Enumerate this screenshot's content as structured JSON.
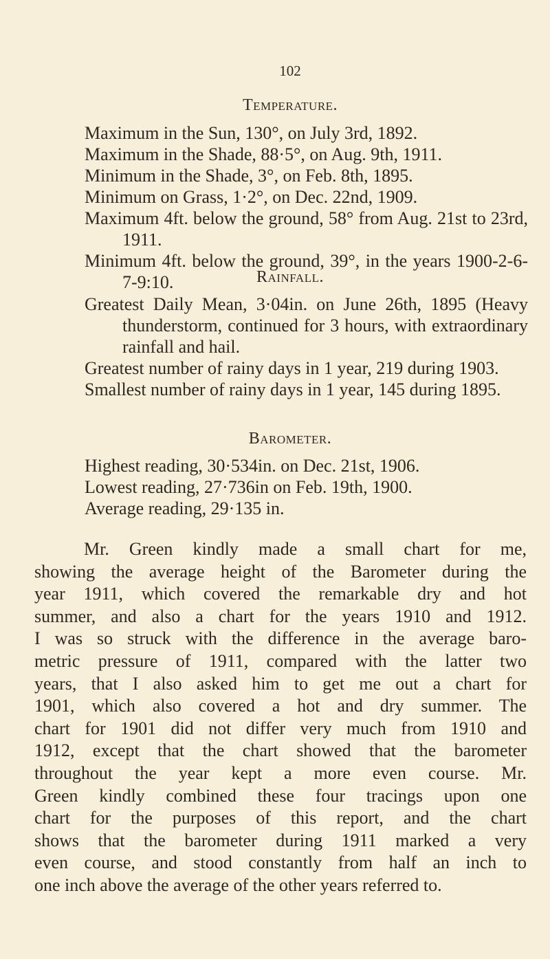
{
  "page_number": "102",
  "temperature": {
    "heading": "Temperature.",
    "items": [
      "Maximum in the Sun, 130°, on July 3rd, 1892.",
      "Maximum in the Shade, 88·5°, on Aug. 9th, 1911.",
      "Minimum in the Shade, 3°, on Feb. 8th, 1895.",
      "Minimum on Grass, 1·2°, on Dec. 22nd, 1909.",
      "Maximum 4ft. below the ground, 58° from Aug. 21st to 23rd, 1911.",
      "Minimum 4ft. below the ground, 39°, in the years 1900-2-6-7-9:10."
    ]
  },
  "rainfall": {
    "heading": "Rainfall.",
    "items": [
      "Greatest Daily Mean, 3·04in. on June 26th, 1895 (Heavy thunderstorm, continued for 3 hours, with extraordinary rainfall and hail.",
      "Greatest number of rainy days in 1 year, 219 during 1903.",
      "Smallest number of rainy days in 1 year, 145 during 1895."
    ]
  },
  "barometer": {
    "heading": "Barometer.",
    "items": [
      "Highest reading, 30·534in. on Dec. 21st, 1906.",
      "Lowest reading, 27·736in on Feb. 19th, 1900.",
      "Average reading, 29·135 in."
    ]
  },
  "paragraph_lines": [
    "Mr. Green kindly made a small chart for me,",
    "showing the average height of the Barometer during the",
    "year 1911, which covered the remarkable dry and hot",
    "summer, and also a chart for the years 1910 and 1912.",
    "I was so struck with the difference in the average baro-",
    "metric pressure of 1911, compared with the latter two",
    "years, that I also asked him to get me out a chart for",
    "1901, which also covered a hot and dry summer. The",
    "chart for 1901 did not differ very much from 1910 and",
    "1912, except that the chart showed that the barometer",
    "throughout the year kept a more even course. Mr.",
    "Green kindly combined these four tracings upon one",
    "chart for the purposes of this report, and the chart",
    "shows that the barometer during 1911 marked a very",
    "even course, and stood constantly from half an inch to",
    "one inch above the average of the other years referred to."
  ]
}
